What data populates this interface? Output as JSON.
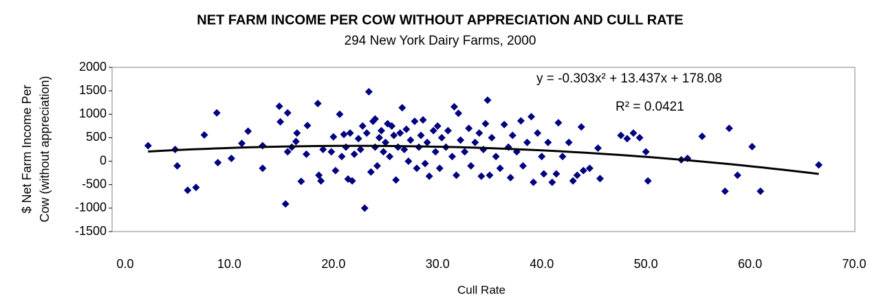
{
  "chart_data": {
    "type": "scatter",
    "title": "NET FARM INCOME PER COW WITHOUT APPRECIATION AND CULL RATE",
    "subtitle": "294 New York Dairy Farms, 2000",
    "xlabel": "Cull Rate",
    "ylabel": [
      "$ Net Farm Income Per",
      "Cow (without appreciation)"
    ],
    "color": "#000080",
    "xlim": [
      0,
      70
    ],
    "ylim": [
      -1500,
      2000
    ],
    "xticks": [
      {
        "value": 0,
        "label": "0.0"
      },
      {
        "value": 10,
        "label": "10.0"
      },
      {
        "value": 20,
        "label": "20.0"
      },
      {
        "value": 30,
        "label": "30.0"
      },
      {
        "value": 40,
        "label": "40.0"
      },
      {
        "value": 50,
        "label": "50.0"
      },
      {
        "value": 60,
        "label": "60.0"
      },
      {
        "value": 70,
        "label": "70.0"
      }
    ],
    "yticks": [
      -1500,
      -1000,
      -500,
      0,
      500,
      1000,
      1500,
      2000
    ],
    "x": [
      2.2,
      4.8,
      5,
      6,
      6.8,
      7.6,
      8.8,
      8.9,
      10.2,
      11.2,
      11.8,
      13.2,
      13.2,
      14.8,
      14.9,
      15.4,
      15.6,
      15.6,
      16,
      16.4,
      16.5,
      16.9,
      17.4,
      17.5,
      18.5,
      18.6,
      18.8,
      19,
      19.8,
      20,
      20.2,
      20.6,
      20.8,
      21,
      21.2,
      21.4,
      21.6,
      21.8,
      22,
      22.4,
      22.6,
      22.8,
      23,
      23.2,
      23.4,
      23.6,
      23.8,
      24,
      24,
      24.2,
      24.4,
      24.6,
      24.8,
      25,
      25.2,
      25.4,
      25.6,
      25.8,
      26,
      26.2,
      26.4,
      26.6,
      26.8,
      27,
      27.2,
      27.4,
      27.8,
      28,
      28.2,
      28.4,
      28.6,
      28.8,
      29,
      29.2,
      29.6,
      29.8,
      30,
      30.2,
      30.4,
      30.8,
      31,
      31.4,
      31.6,
      31.8,
      32,
      32.2,
      32.6,
      33,
      33.2,
      33.6,
      34,
      34.2,
      34.4,
      34.6,
      34.8,
      35,
      35.2,
      35.6,
      36,
      36.4,
      36.8,
      37,
      37.2,
      37.6,
      38,
      38.2,
      38.6,
      39,
      39.2,
      39.6,
      40,
      40.2,
      40.6,
      41,
      41.4,
      41.6,
      42,
      42.6,
      43,
      43.4,
      43.8,
      44,
      44.6,
      45.4,
      45.6,
      47.6,
      48.2,
      48.8,
      49.4,
      50,
      50.2,
      53.4,
      54,
      55.4,
      57.6,
      58,
      58.8,
      60.2,
      61,
      66.6
    ],
    "values": [
      330,
      250,
      -100,
      -620,
      -560,
      560,
      1030,
      -30,
      60,
      380,
      640,
      330,
      -150,
      1170,
      840,
      -910,
      1030,
      200,
      300,
      420,
      600,
      -430,
      150,
      760,
      1230,
      -300,
      -420,
      250,
      200,
      520,
      -200,
      1000,
      100,
      570,
      300,
      -380,
      600,
      -420,
      150,
      480,
      250,
      750,
      -1000,
      600,
      1480,
      -230,
      850,
      300,
      900,
      -100,
      500,
      650,
      200,
      400,
      800,
      100,
      750,
      550,
      -400,
      300,
      600,
      1140,
      250,
      680,
      0,
      450,
      850,
      -150,
      300,
      550,
      880,
      -50,
      400,
      -320,
      650,
      200,
      750,
      -150,
      500,
      300,
      650,
      100,
      1160,
      -300,
      1020,
      450,
      200,
      700,
      -100,
      400,
      600,
      -320,
      250,
      800,
      1300,
      -300,
      500,
      100,
      -150,
      780,
      300,
      -350,
      550,
      200,
      860,
      -100,
      400,
      950,
      -450,
      600,
      100,
      -270,
      400,
      -450,
      -270,
      820,
      100,
      400,
      -420,
      -300,
      730,
      -200,
      -150,
      280,
      -370,
      550,
      480,
      600,
      500,
      200,
      -420,
      30,
      60,
      530,
      -640,
      700,
      -300,
      310,
      -640,
      -80
    ],
    "trendline": {
      "coefficients": [
        -0.303,
        13.437,
        178.08
      ],
      "x_range": [
        2.2,
        66.6
      ],
      "color": "#000000",
      "equation": "y = -0.303x² + 13.437x + 178.08",
      "r_squared": "R² = 0.0421"
    }
  }
}
